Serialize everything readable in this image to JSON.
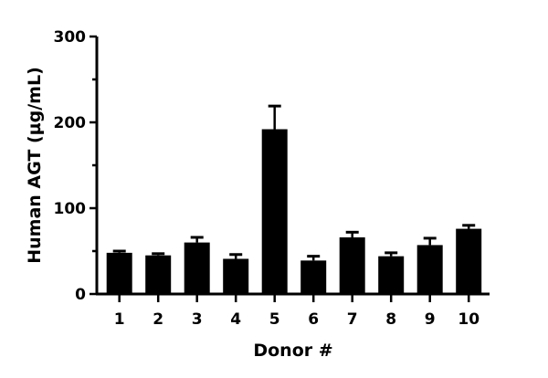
{
  "chart_data": {
    "type": "bar",
    "title": "",
    "xlabel": "Donor #",
    "ylabel": "Human AGT (µg/mL)",
    "ylim": [
      0,
      300
    ],
    "yticks": [
      "0",
      "100",
      "200",
      "300"
    ],
    "categories": [
      "1",
      "2",
      "3",
      "4",
      "5",
      "6",
      "7",
      "8",
      "9",
      "10"
    ],
    "values": [
      48,
      45,
      60,
      41,
      192,
      39,
      66,
      44,
      57,
      76
    ],
    "error_upper": [
      50,
      47,
      66,
      46,
      219,
      44,
      72,
      48,
      65,
      80
    ],
    "grid": false,
    "bar_color": "#000000"
  }
}
